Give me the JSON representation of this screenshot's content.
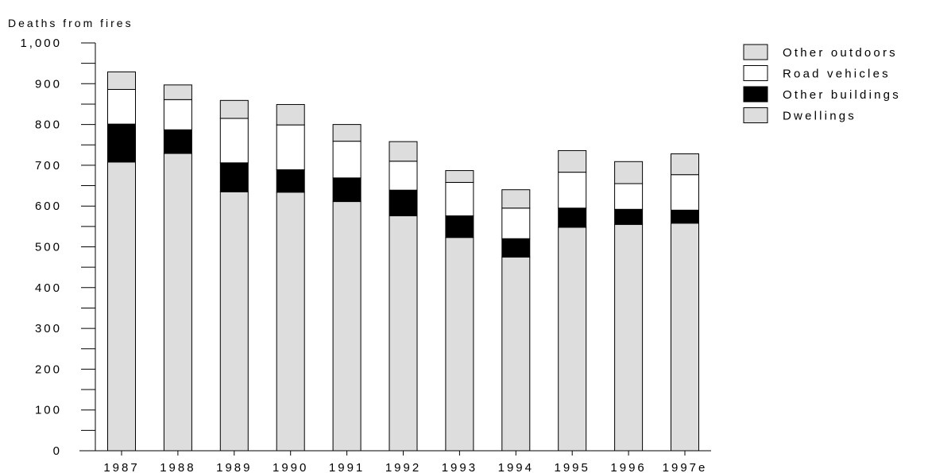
{
  "chart_data": {
    "type": "bar",
    "stacked": true,
    "title": "",
    "ylabel": "Deaths from fires",
    "xlabel": "",
    "ylim": [
      0,
      1000
    ],
    "yticks": [
      "0",
      "100",
      "200",
      "300",
      "400",
      "500",
      "600",
      "700",
      "800",
      "900",
      "1,000"
    ],
    "categories": [
      "1987",
      "1988",
      "1989",
      "1990",
      "1991",
      "1992",
      "1993",
      "1994",
      "1995",
      "1996",
      "1997e"
    ],
    "series": [
      {
        "name": "Dwellings",
        "color": "#dddddd",
        "values": [
          708,
          729,
          635,
          634,
          611,
          576,
          523,
          475,
          548,
          555,
          558
        ]
      },
      {
        "name": "Other buildings",
        "color": "#000000",
        "values": [
          93,
          58,
          71,
          55,
          58,
          63,
          53,
          45,
          47,
          37,
          32
        ]
      },
      {
        "name": "Road vehicles",
        "color": "#ffffff",
        "values": [
          85,
          74,
          109,
          110,
          90,
          71,
          82,
          75,
          88,
          63,
          87
        ]
      },
      {
        "name": "Other outdoors",
        "color": "#dddddd",
        "values": [
          43,
          36,
          44,
          50,
          41,
          48,
          29,
          45,
          53,
          54,
          51
        ]
      }
    ],
    "legend_order": [
      "Other outdoors",
      "Road vehicles",
      "Other buildings",
      "Dwellings"
    ],
    "legend_position": "right",
    "grid": false
  }
}
